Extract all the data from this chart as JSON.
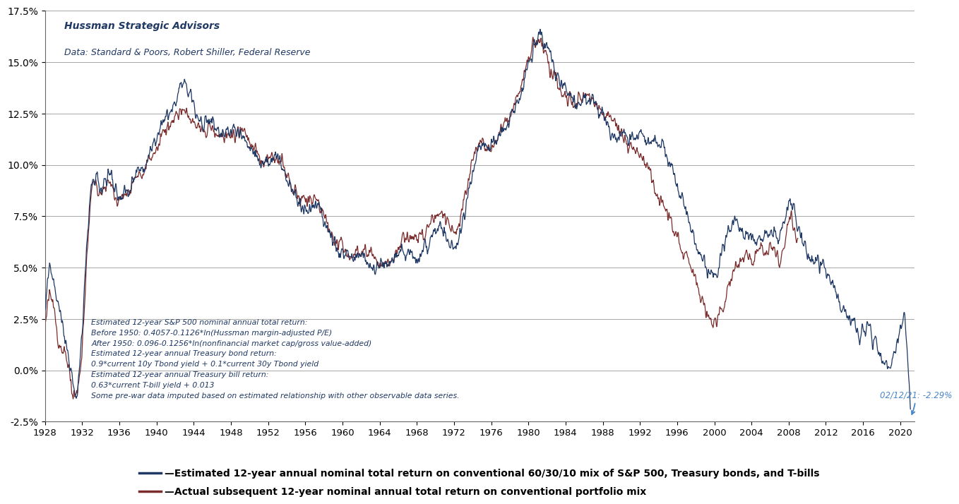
{
  "subtitle1": "Hussman Strategic Advisors",
  "subtitle2": "Data: Standard & Poors, Robert Shiller, Federal Reserve",
  "annotation_text": "Estimated 12-year S&P 500 nominal annual total return:\nBefore 1950: 0.4057-0.1126*ln(Hussman margin-adjusted P/E)\nAfter 1950: 0.096-0.1256*ln(nonfinancial market cap/gross value-added)\nEstimated 12-year annual Treasury bond return:\n0.9*current 10y Tbond yield + 0.1*current 30y Tbond yield\nEstimated 12-year annual Treasury bill return:\n0.63*current T-bill yield + 0.013\nSome pre-war data imputed based on estimated relationship with other observable data series.",
  "annotation_label": "02/12/21: -2.29%",
  "legend1": "—Estimated 12-year annual nominal total return on conventional 60/30/10 mix of S&P 500, Treasury bonds, and T-bills",
  "legend2": "—Actual subsequent 12-year nominal annual total return on conventional portfolio mix",
  "line1_color": "#1f3864",
  "line2_color": "#7b2c2c",
  "ylim_min": -0.025,
  "ylim_max": 0.175,
  "yticks": [
    -0.025,
    0.0,
    0.025,
    0.05,
    0.075,
    0.1,
    0.125,
    0.15,
    0.175
  ],
  "ytick_labels": [
    "-2.5%",
    "0.0%",
    "2.5%",
    "5.0%",
    "7.5%",
    "10.0%",
    "12.5%",
    "15.0%",
    "17.5%"
  ],
  "background_color": "#ffffff",
  "grid_color": "#999999",
  "arrow_color": "#4a86c8"
}
